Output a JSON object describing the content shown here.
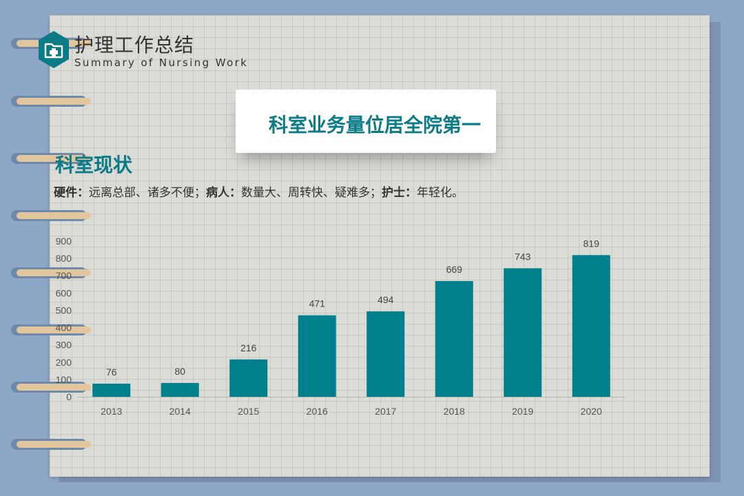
{
  "header": {
    "title": "护理工作总结",
    "subtitle": "Summary of Nursing Work",
    "logo_icon": "medical-folder-plus-icon"
  },
  "card": {
    "title": "科室业务量位居全院第一"
  },
  "section": {
    "title": "科室现状",
    "desc": [
      {
        "label": "硬件：",
        "text": "远离总部、诸多不便；"
      },
      {
        "label": "病人：",
        "text": "数量大、周转快、疑难多；"
      },
      {
        "label": "护士：",
        "text": "年轻化。"
      }
    ]
  },
  "colors": {
    "accent": "#0b7b87",
    "bar": "#007f8c",
    "paper": "#dcdcd6",
    "background": "#8fa7c6"
  },
  "chart_data": {
    "type": "bar",
    "categories": [
      "2013",
      "2014",
      "2015",
      "2016",
      "2017",
      "2018",
      "2019",
      "2020"
    ],
    "values": [
      76,
      80,
      216,
      471,
      494,
      669,
      743,
      819
    ],
    "yticks": [
      0,
      100,
      200,
      300,
      400,
      500,
      600,
      700,
      800,
      900
    ],
    "ylim": [
      0,
      900
    ],
    "grid": false,
    "title": "",
    "xlabel": "",
    "ylabel": ""
  }
}
